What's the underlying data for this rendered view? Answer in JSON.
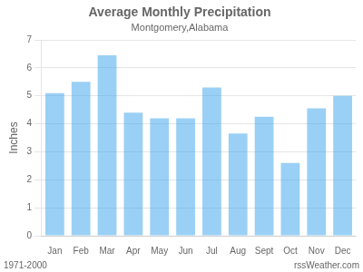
{
  "chart_data": {
    "type": "bar",
    "title": "Average Monthly Precipitation",
    "subtitle": "Montgomery,Alabama",
    "ylabel": "Inches",
    "categories": [
      "Jan",
      "Feb",
      "Mar",
      "Apr",
      "May",
      "Jun",
      "Jul",
      "Aug",
      "Sept",
      "Oct",
      "Nov",
      "Dec"
    ],
    "values": [
      5.1,
      5.5,
      6.45,
      4.4,
      4.2,
      4.2,
      5.3,
      3.65,
      4.25,
      2.6,
      4.55,
      5.0
    ],
    "ylim": [
      0.0,
      7.0
    ],
    "yticks": [
      0,
      1,
      2,
      3,
      4,
      5,
      6,
      7
    ],
    "grid": true,
    "annotations": [
      "1971-2000",
      "rssWeather.com"
    ]
  }
}
